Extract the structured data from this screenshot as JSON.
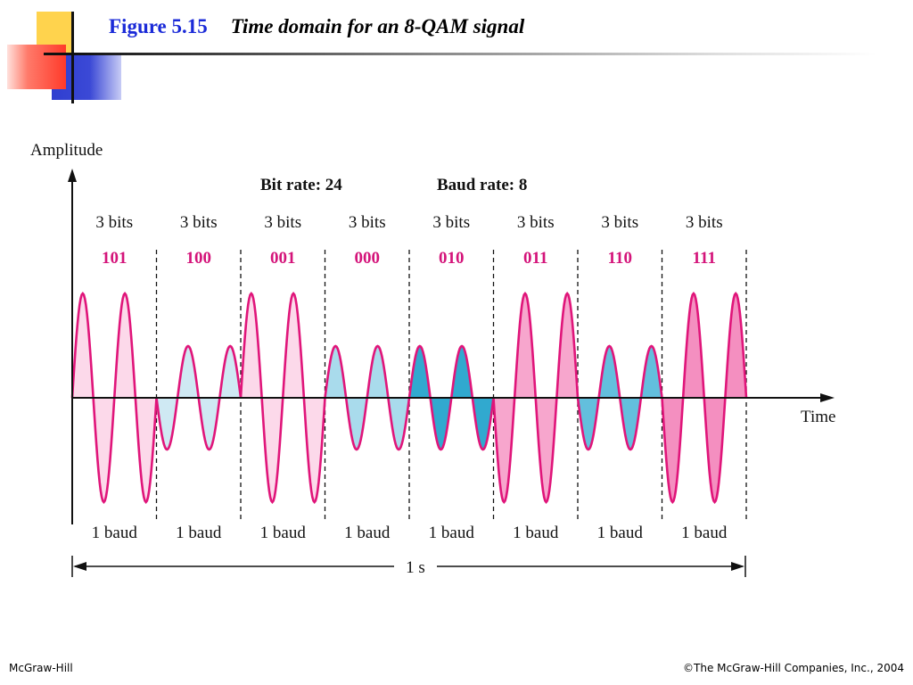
{
  "header": {
    "figure_number": "Figure 5.15",
    "title": "Time domain for an 8-QAM signal"
  },
  "diagram": {
    "y_axis_label": "Amplitude",
    "x_axis_label": "Time",
    "bit_rate_label": "Bit rate: 24",
    "baud_rate_label": "Baud rate: 8",
    "duration_label": "1 s",
    "segments": [
      {
        "bits_label": "3 bits",
        "code": "101",
        "baud_label": "1 baud",
        "amplitude": "high",
        "phase": "0",
        "fill": "#fcd9ea"
      },
      {
        "bits_label": "3 bits",
        "code": "100",
        "baud_label": "1 baud",
        "amplitude": "low",
        "phase": "180",
        "fill": "#cfe9f3"
      },
      {
        "bits_label": "3 bits",
        "code": "001",
        "baud_label": "1 baud",
        "amplitude": "high",
        "phase": "0",
        "fill": "#fcd9ea"
      },
      {
        "bits_label": "3 bits",
        "code": "000",
        "baud_label": "1 baud",
        "amplitude": "low",
        "phase": "0",
        "fill": "#a9dbec"
      },
      {
        "bits_label": "3 bits",
        "code": "010",
        "baud_label": "1 baud",
        "amplitude": "low",
        "phase": "0",
        "fill": "#31a9cf"
      },
      {
        "bits_label": "3 bits",
        "code": "011",
        "baud_label": "1 baud",
        "amplitude": "high",
        "phase": "180",
        "fill": "#f7a6cd"
      },
      {
        "bits_label": "3 bits",
        "code": "110",
        "baud_label": "1 baud",
        "amplitude": "low",
        "phase": "180",
        "fill": "#63bfdd"
      },
      {
        "bits_label": "3 bits",
        "code": "111",
        "baud_label": "1 baud",
        "amplitude": "high",
        "phase": "180",
        "fill": "#f48fc0"
      }
    ],
    "colors": {
      "wave": "#e0157a",
      "code_text": "#d4147a",
      "axis": "#111111"
    }
  },
  "footer": {
    "left": "McGraw-Hill",
    "right": "©The McGraw-Hill Companies, Inc., 2004"
  }
}
